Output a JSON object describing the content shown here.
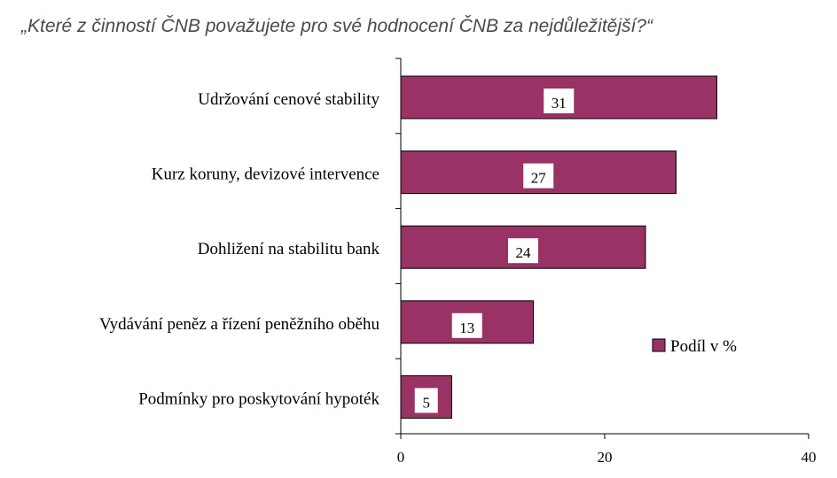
{
  "chart_data": {
    "type": "bar",
    "orientation": "horizontal",
    "title": "„Které z činností ČNB považujete pro své hodnocení ČNB za nejdůležitější?“",
    "categories": [
      "Udržování cenové stability",
      "Kurz koruny, devizové intervence",
      "Dohližení na stabilitu bank",
      "Vydávání peněz a řízení peněžního oběhu",
      "Podmínky pro poskytování hypoték"
    ],
    "series": [
      {
        "name": "Podíl v %",
        "values": [
          31,
          27,
          24,
          13,
          5
        ]
      }
    ],
    "xlim": [
      0,
      40
    ],
    "xticks": [
      0,
      20,
      40
    ],
    "bar_color": "#993366",
    "legend_position": "right",
    "grid": false
  }
}
